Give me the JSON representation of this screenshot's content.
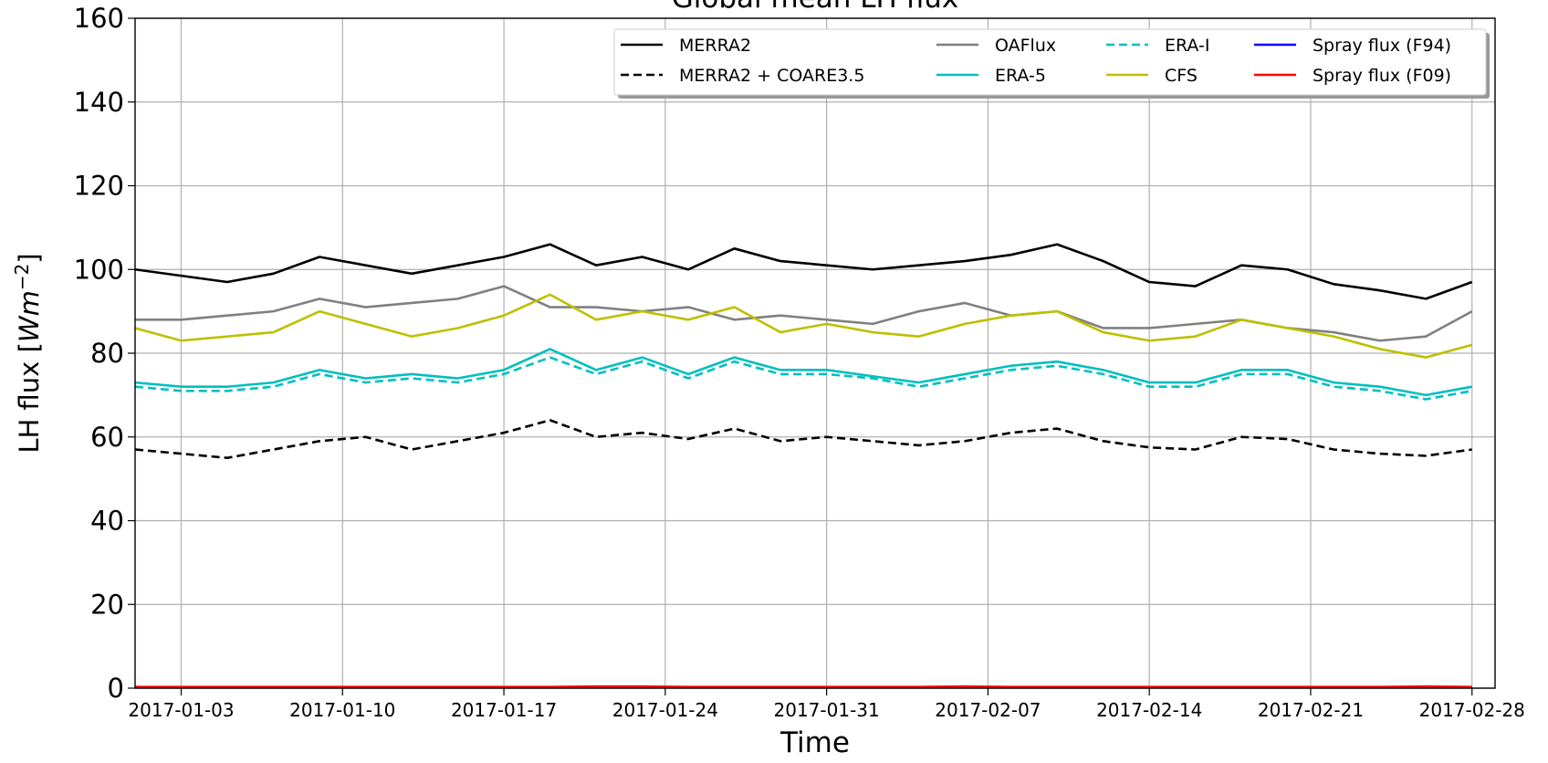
{
  "chart_data": {
    "type": "line",
    "title": "Global mean LH flux",
    "xlabel": "Time",
    "ylabel_parts": [
      "LH flux [",
      "Wm",
      "−2",
      "]"
    ],
    "x": [
      "2017-01-01",
      "2017-01-03",
      "2017-01-05",
      "2017-01-07",
      "2017-01-09",
      "2017-01-11",
      "2017-01-13",
      "2017-01-15",
      "2017-01-17",
      "2017-01-19",
      "2017-01-21",
      "2017-01-23",
      "2017-01-25",
      "2017-01-27",
      "2017-01-29",
      "2017-01-31",
      "2017-02-02",
      "2017-02-04",
      "2017-02-06",
      "2017-02-08",
      "2017-02-10",
      "2017-02-12",
      "2017-02-14",
      "2017-02-16",
      "2017-02-18",
      "2017-02-20",
      "2017-02-22",
      "2017-02-24",
      "2017-02-26",
      "2017-02-28"
    ],
    "xlim": [
      "2017-01-01",
      "2017-03-01"
    ],
    "xticks": [
      "2017-01-03",
      "2017-01-10",
      "2017-01-17",
      "2017-01-24",
      "2017-01-31",
      "2017-02-07",
      "2017-02-14",
      "2017-02-21",
      "2017-02-28"
    ],
    "ylim": [
      0,
      160
    ],
    "yticks": [
      0,
      20,
      40,
      60,
      80,
      100,
      120,
      140,
      160
    ],
    "grid": true,
    "legend": "upper right",
    "series": [
      {
        "name": "MERRA2",
        "color": "#000000",
        "dash": "solid",
        "values": [
          100,
          98.5,
          97,
          99,
          103,
          101,
          99,
          101,
          103,
          106,
          101,
          103,
          100,
          105,
          102,
          101,
          100,
          101,
          102,
          103.5,
          106,
          102,
          97,
          96,
          101,
          100,
          96.5,
          95,
          93,
          97
        ]
      },
      {
        "name": "MERRA2 + COARE3.5",
        "color": "#000000",
        "dash": "dashed",
        "values": [
          57,
          56,
          55,
          57,
          59,
          60,
          57,
          59,
          61,
          64,
          60,
          61,
          59.5,
          62,
          59,
          60,
          59,
          58,
          59,
          61,
          62,
          59,
          57.5,
          57,
          60,
          59.5,
          57,
          56,
          55.5,
          57
        ]
      },
      {
        "name": "OAFlux",
        "color": "#808080",
        "dash": "solid",
        "values": [
          88,
          88,
          89,
          90,
          93,
          91,
          92,
          93,
          96,
          91,
          91,
          90,
          91,
          88,
          89,
          88,
          87,
          90,
          92,
          89,
          90,
          86,
          86,
          87,
          88,
          86,
          85,
          83,
          84,
          90
        ]
      },
      {
        "name": "ERA-5",
        "color": "#00bfbf",
        "dash": "solid",
        "values": [
          73,
          72,
          72,
          73,
          76,
          74,
          75,
          74,
          76,
          81,
          76,
          79,
          75,
          79,
          76,
          76,
          74.5,
          73,
          75,
          77,
          78,
          76,
          73,
          73,
          76,
          76,
          73,
          72,
          70,
          72
        ]
      },
      {
        "name": "ERA-I",
        "color": "#00bfbf",
        "dash": "dashed",
        "values": [
          72,
          71,
          71,
          72,
          75,
          73,
          74,
          73,
          75,
          79,
          75,
          78,
          74,
          78,
          75,
          75,
          74,
          72,
          74,
          76,
          77,
          75,
          72,
          72,
          75,
          75,
          72,
          71,
          69,
          71
        ]
      },
      {
        "name": "CFS",
        "color": "#bfbf00",
        "dash": "solid",
        "values": [
          86,
          83,
          84,
          85,
          90,
          87,
          84,
          86,
          89,
          94,
          88,
          90,
          88,
          91,
          85,
          87,
          85,
          84,
          87,
          89,
          90,
          85,
          83,
          84,
          88,
          86,
          84,
          81,
          79,
          82
        ]
      },
      {
        "name": "Spray flux (F94)",
        "color": "#0000ff",
        "dash": "solid",
        "values": [
          0.2,
          0.2,
          0.2,
          0.2,
          0.2,
          0.2,
          0.2,
          0.2,
          0.2,
          0.2,
          0.2,
          0.2,
          0.2,
          0.2,
          0.2,
          0.2,
          0.2,
          0.2,
          0.2,
          0.2,
          0.2,
          0.2,
          0.2,
          0.2,
          0.2,
          0.2,
          0.2,
          0.2,
          0.2,
          0.2
        ]
      },
      {
        "name": "Spray flux (F09)",
        "color": "#ff0000",
        "dash": "solid",
        "values": [
          0.3,
          0.3,
          0.3,
          0.3,
          0.3,
          0.3,
          0.3,
          0.3,
          0.3,
          0.3,
          0.4,
          0.4,
          0.3,
          0.3,
          0.3,
          0.3,
          0.3,
          0.3,
          0.4,
          0.3,
          0.3,
          0.3,
          0.3,
          0.3,
          0.3,
          0.3,
          0.3,
          0.3,
          0.4,
          0.3
        ]
      }
    ]
  }
}
